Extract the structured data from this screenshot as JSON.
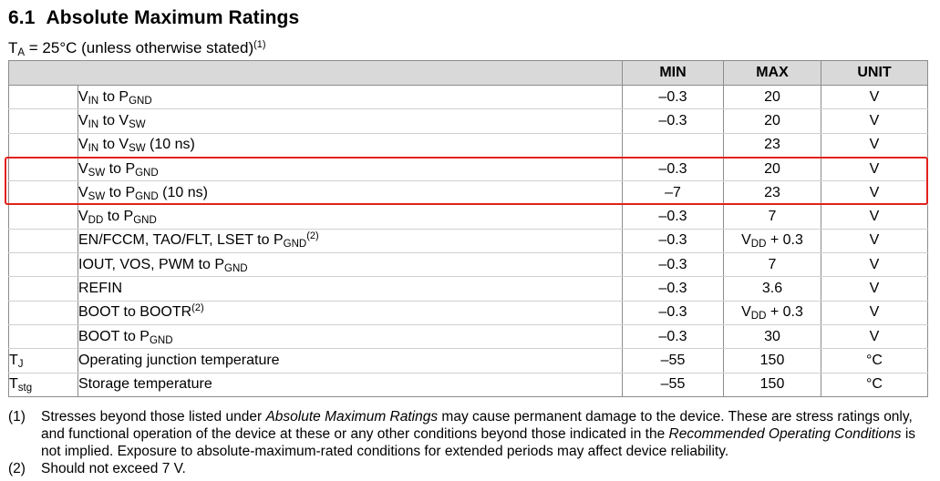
{
  "section": {
    "number": "6.1",
    "title": "Absolute Maximum Ratings"
  },
  "condition": {
    "prefix": "T",
    "prefix_sub": "A",
    "text": " = 25°C (unless otherwise stated)",
    "note_ref": "(1)"
  },
  "table": {
    "headers": {
      "param": "",
      "min": "MIN",
      "max": "MAX",
      "unit": "UNIT"
    },
    "rows": [
      {
        "sym": "",
        "min": "–0.3",
        "max": "20",
        "unit": "V",
        "param": {
          "a": "V",
          "a_sub": "IN",
          "b": " to P",
          "b_sub": "GND",
          "c": "",
          "ref": ""
        }
      },
      {
        "sym": "",
        "min": "–0.3",
        "max": "20",
        "unit": "V",
        "param": {
          "a": "V",
          "a_sub": "IN",
          "b": " to V",
          "b_sub": "SW",
          "c": "",
          "ref": ""
        }
      },
      {
        "sym": "",
        "min": "",
        "max": "23",
        "unit": "V",
        "param": {
          "a": "V",
          "a_sub": "IN",
          "b": " to V",
          "b_sub": "SW",
          "c": " (10 ns)",
          "ref": ""
        }
      },
      {
        "sym": "",
        "min": "–0.3",
        "max": "20",
        "unit": "V",
        "param": {
          "a": "V",
          "a_sub": "SW",
          "b": " to P",
          "b_sub": "GND",
          "c": "",
          "ref": ""
        }
      },
      {
        "sym": "",
        "min": "–7",
        "max": "23",
        "unit": "V",
        "param": {
          "a": "V",
          "a_sub": "SW",
          "b": " to P",
          "b_sub": "GND",
          "c": " (10 ns)",
          "ref": ""
        }
      },
      {
        "sym": "",
        "min": "–0.3",
        "max": "7",
        "unit": "V",
        "param": {
          "a": "V",
          "a_sub": "DD",
          "b": " to P",
          "b_sub": "GND",
          "c": "",
          "ref": ""
        }
      },
      {
        "sym": "",
        "min": "–0.3",
        "max_main": "V",
        "max_sub": "DD",
        "max_tail": " + 0.3",
        "unit": "V",
        "param": {
          "a": "EN/FCCM, TAO/FLT, LSET to P",
          "a_sub": "GND",
          "b": "",
          "b_sub": "",
          "c": "",
          "ref": "(2)"
        }
      },
      {
        "sym": "",
        "min": "–0.3",
        "max": "7",
        "unit": "V",
        "param": {
          "a": "IOUT, VOS, PWM to P",
          "a_sub": "GND",
          "b": "",
          "b_sub": "",
          "c": "",
          "ref": ""
        }
      },
      {
        "sym": "",
        "min": "–0.3",
        "max": "3.6",
        "unit": "V",
        "param": {
          "a": "REFIN",
          "a_sub": "",
          "b": "",
          "b_sub": "",
          "c": "",
          "ref": ""
        }
      },
      {
        "sym": "",
        "min": "–0.3",
        "max_main": "V",
        "max_sub": "DD",
        "max_tail": " + 0.3",
        "unit": "V",
        "param": {
          "a": "BOOT to BOOTR",
          "a_sub": "",
          "b": "",
          "b_sub": "",
          "c": "",
          "ref": "(2)"
        }
      },
      {
        "sym": "",
        "min": "–0.3",
        "max": "30",
        "unit": "V",
        "param": {
          "a": "BOOT to P",
          "a_sub": "GND",
          "b": "",
          "b_sub": "",
          "c": "",
          "ref": ""
        }
      },
      {
        "sym": "T",
        "sym_sub": "J",
        "min": "–55",
        "max": "150",
        "unit": "°C",
        "param": {
          "a": "Operating junction temperature",
          "a_sub": "",
          "b": "",
          "b_sub": "",
          "c": "",
          "ref": ""
        }
      },
      {
        "sym": "T",
        "sym_sub": "stg",
        "min": "–55",
        "max": "150",
        "unit": "°C",
        "param": {
          "a": "Storage temperature",
          "a_sub": "",
          "b": "",
          "b_sub": "",
          "c": "",
          "ref": ""
        }
      }
    ]
  },
  "notes": [
    {
      "mark": "(1)",
      "p1": "Stresses beyond those listed under ",
      "i1": "Absolute Maximum Ratings",
      "p2": " may cause permanent damage to the device. These are stress ratings only, and functional operation of the device at these or any other conditions beyond those indicated in the ",
      "i2": "Recommended Operating Conditions",
      "p3": " is not implied. Exposure to absolute-maximum-rated conditions for extended periods may affect device reliability."
    },
    {
      "mark": "(2)",
      "p1": "Should not exceed 7 V."
    }
  ],
  "highlight": {
    "color": "#e3221b",
    "rows": "V_SW to P_GND"
  }
}
